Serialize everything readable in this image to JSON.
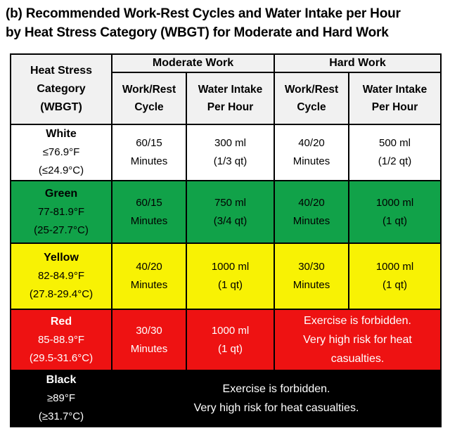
{
  "title": {
    "line1": "(b) Recommended Work-Rest Cycles and Water Intake per Hour",
    "line2": "by Heat Stress Category (WBGT) for Moderate and Hard Work"
  },
  "colors": {
    "header_bg": "#F1F1F1",
    "border": "#000000",
    "row_white_bg": "#FFFFFF",
    "row_green_bg": "#11A249",
    "row_yellow_bg": "#F8F204",
    "row_red_bg": "#EE1212",
    "row_black_bg": "#000000",
    "light_text": "#FFFFFF",
    "dark_text": "#000000"
  },
  "table": {
    "corner": {
      "lines": [
        "Heat Stress",
        "Category",
        "(WBGT)"
      ]
    },
    "groups": [
      {
        "label": "Moderate Work",
        "columns": [
          {
            "lines": [
              "Work/Rest",
              "Cycle"
            ]
          },
          {
            "lines": [
              "Water Intake",
              "Per Hour"
            ]
          }
        ]
      },
      {
        "label": "Hard Work",
        "columns": [
          {
            "lines": [
              "Work/Rest",
              "Cycle"
            ]
          },
          {
            "lines": [
              "Water Intake",
              "Per Hour"
            ]
          }
        ]
      }
    ],
    "rows": [
      {
        "id": "white",
        "bg": "#FFFFFF",
        "fg": "#000000",
        "category": {
          "name": "White",
          "lines": [
            "≤76.9°F",
            "(≤24.9°C)"
          ]
        },
        "cells": [
          {
            "lines": [
              "60/15",
              "Minutes"
            ]
          },
          {
            "lines": [
              "300 ml",
              "(1/3 qt)"
            ]
          },
          {
            "lines": [
              "40/20",
              "Minutes"
            ]
          },
          {
            "lines": [
              "500 ml",
              "(1/2 qt)"
            ]
          }
        ]
      },
      {
        "id": "green",
        "bg": "#11A249",
        "fg": "#000000",
        "category": {
          "name": "Green",
          "lines": [
            "77-81.9°F",
            "(25-27.7°C)"
          ]
        },
        "cells": [
          {
            "lines": [
              "60/15",
              "Minutes"
            ]
          },
          {
            "lines": [
              "750 ml",
              "(3/4 qt)"
            ]
          },
          {
            "lines": [
              "40/20",
              "Minutes"
            ]
          },
          {
            "lines": [
              "1000 ml",
              "(1 qt)"
            ]
          }
        ]
      },
      {
        "id": "yellow",
        "bg": "#F8F204",
        "fg": "#000000",
        "category": {
          "name": "Yellow",
          "lines": [
            "82-84.9°F",
            "(27.8-29.4°C)"
          ]
        },
        "cells": [
          {
            "lines": [
              "40/20",
              "Minutes"
            ]
          },
          {
            "lines": [
              "1000 ml",
              "(1 qt)"
            ]
          },
          {
            "lines": [
              "30/30",
              "Minutes"
            ]
          },
          {
            "lines": [
              "1000 ml",
              "(1 qt)"
            ]
          }
        ]
      },
      {
        "id": "red",
        "bg": "#EE1212",
        "fg": "#FFFFFF",
        "category": {
          "name": "Red",
          "lines": [
            "85-88.9°F",
            "(29.5-31.6°C)"
          ]
        },
        "cells": [
          {
            "lines": [
              "30/30",
              "Minutes"
            ]
          },
          {
            "lines": [
              "1000 ml",
              "(1 qt)"
            ]
          },
          {
            "span": 2,
            "message": true,
            "lines": [
              "Exercise is forbidden.",
              "Very high risk for heat",
              "casualties."
            ]
          }
        ]
      },
      {
        "id": "black",
        "bg": "#000000",
        "fg": "#FFFFFF",
        "category": {
          "name": "Black",
          "lines": [
            "≥89°F",
            "(≥31.7°C)"
          ]
        },
        "cells": [
          {
            "span": 4,
            "message": true,
            "lines": [
              "Exercise is forbidden.",
              "Very high risk for heat casualties."
            ]
          }
        ]
      }
    ]
  }
}
